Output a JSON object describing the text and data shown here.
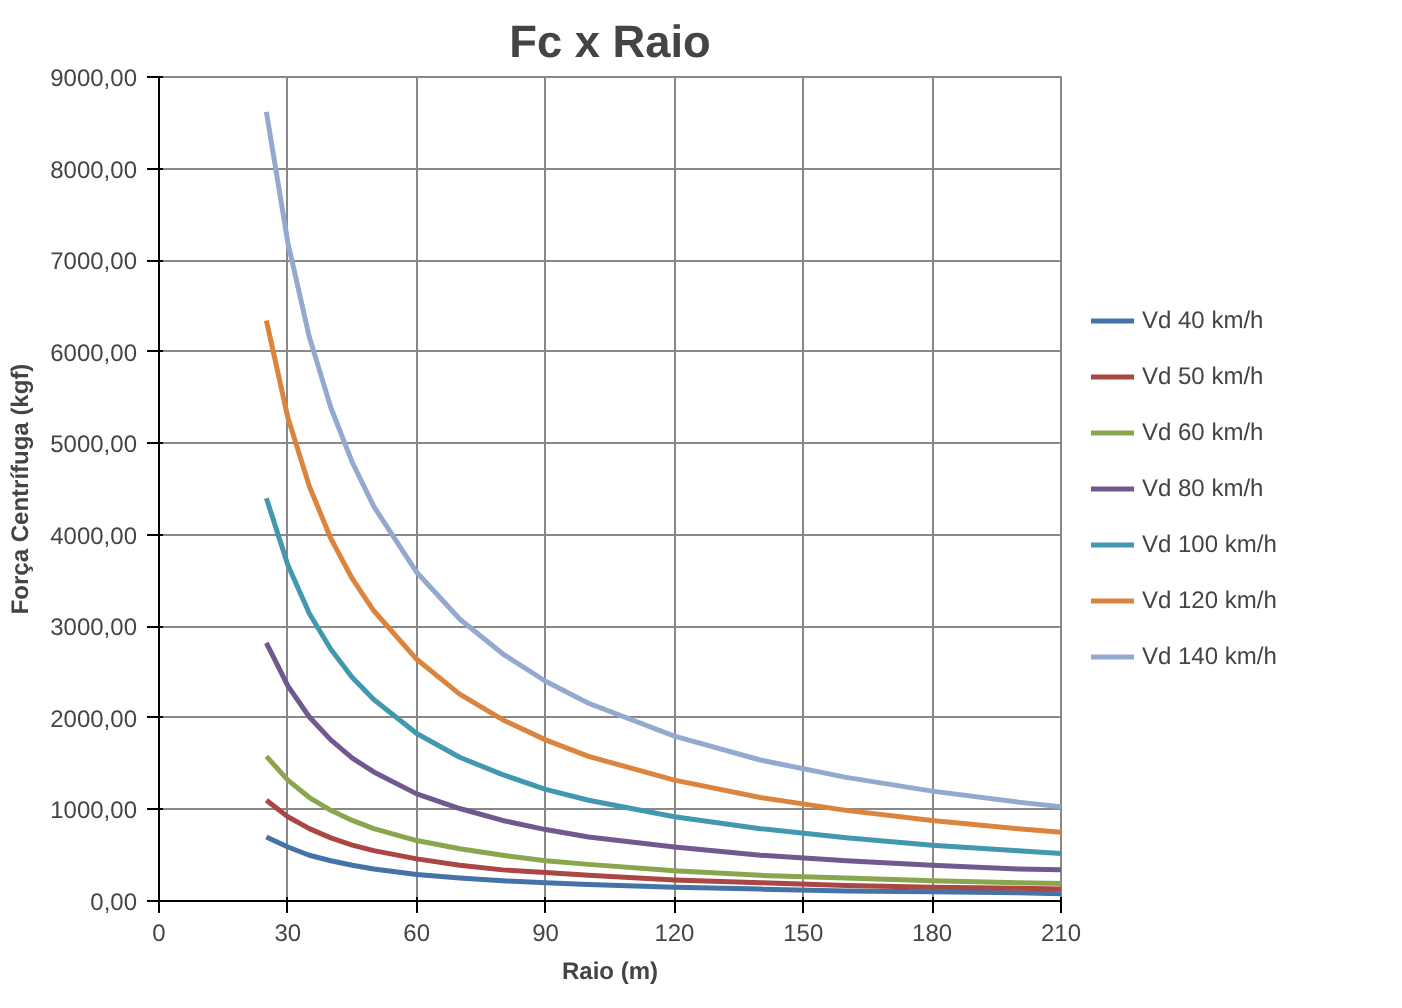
{
  "chart_data": {
    "type": "line",
    "title": "Fc x Raio",
    "xlabel": "Raio (m)",
    "ylabel": "Força Centrífuga (kgf)",
    "x": [
      25,
      30,
      35,
      40,
      45,
      50,
      60,
      70,
      80,
      90,
      100,
      120,
      140,
      160,
      180,
      200,
      210
    ],
    "xlim": [
      0,
      210
    ],
    "xticks": [
      0,
      30,
      60,
      90,
      120,
      150,
      180,
      210
    ],
    "ylim": [
      0,
      9000
    ],
    "yticks": [
      {
        "value": 0,
        "label": "0,00"
      },
      {
        "value": 1000,
        "label": "1000,00"
      },
      {
        "value": 2000,
        "label": "2000,00"
      },
      {
        "value": 3000,
        "label": "3000,00"
      },
      {
        "value": 4000,
        "label": "4000,00"
      },
      {
        "value": 5000,
        "label": "5000,00"
      },
      {
        "value": 6000,
        "label": "6000,00"
      },
      {
        "value": 7000,
        "label": "7000,00"
      },
      {
        "value": 8000,
        "label": "8000,00"
      },
      {
        "value": 9000,
        "label": "9000,00"
      }
    ],
    "grid": true,
    "legend": "right",
    "marker": "none",
    "line_style": "solid",
    "series": [
      {
        "name": "Vd 40 km/h",
        "color": "#4572a7",
        "values": [
          700,
          590,
          500,
          440,
          390,
          350,
          290,
          250,
          220,
          200,
          180,
          150,
          130,
          110,
          100,
          90,
          80
        ]
      },
      {
        "name": "Vd 50 km/h",
        "color": "#aa4643",
        "values": [
          1100,
          920,
          790,
          690,
          610,
          550,
          460,
          390,
          340,
          310,
          280,
          230,
          200,
          170,
          150,
          140,
          130
        ]
      },
      {
        "name": "Vd 60 km/h",
        "color": "#89a54e",
        "values": [
          1580,
          1320,
          1130,
          990,
          880,
          790,
          660,
          570,
          500,
          440,
          400,
          330,
          280,
          250,
          220,
          200,
          190
        ]
      },
      {
        "name": "Vd 80 km/h",
        "color": "#71588f",
        "values": [
          2820,
          2350,
          2010,
          1760,
          1560,
          1410,
          1170,
          1010,
          880,
          780,
          700,
          590,
          500,
          440,
          390,
          350,
          340
        ]
      },
      {
        "name": "Vd 100 km/h",
        "color": "#4198af",
        "values": [
          4400,
          3670,
          3140,
          2750,
          2440,
          2200,
          1830,
          1570,
          1380,
          1220,
          1100,
          920,
          790,
          690,
          610,
          550,
          520
        ]
      },
      {
        "name": "Vd 120 km/h",
        "color": "#db843d",
        "values": [
          6340,
          5280,
          4530,
          3960,
          3520,
          3170,
          2640,
          2260,
          1980,
          1760,
          1580,
          1320,
          1130,
          990,
          880,
          790,
          750
        ]
      },
      {
        "name": "Vd 140 km/h",
        "color": "#93a9cf",
        "values": [
          8620,
          7190,
          6160,
          5390,
          4790,
          4310,
          3590,
          3080,
          2700,
          2400,
          2160,
          1800,
          1540,
          1350,
          1200,
          1080,
          1030
        ]
      }
    ]
  }
}
